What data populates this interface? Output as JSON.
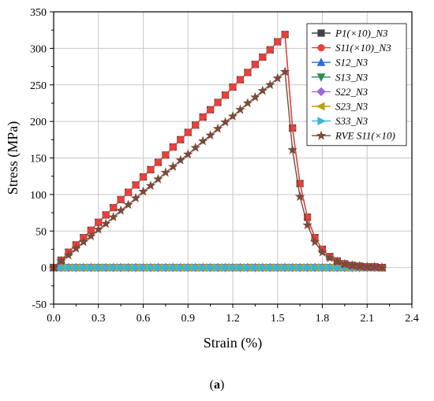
{
  "caption": {
    "open": "(",
    "label": "a",
    "close": ")"
  },
  "chart_data": {
    "type": "line",
    "xlabel": "Strain (%)",
    "ylabel": "Stress (MPa)",
    "xlim": [
      0.0,
      2.4
    ],
    "ylim": [
      -50,
      350
    ],
    "xticks": [
      "0.0",
      "0.3",
      "0.6",
      "0.9",
      "1.2",
      "1.5",
      "1.8",
      "2.1",
      "2.4"
    ],
    "yticks": [
      "-50",
      "0",
      "50",
      "100",
      "150",
      "200",
      "250",
      "300",
      "350"
    ],
    "grid": true,
    "legend_position": "top-right",
    "series": [
      {
        "name": "P1(×10)_N3",
        "color": "#444444",
        "marker": "square",
        "x": [
          0.0,
          0.05,
          0.1,
          0.15,
          0.2,
          0.25,
          0.3,
          0.35,
          0.4,
          0.45,
          0.5,
          0.55,
          0.6,
          0.65,
          0.7,
          0.75,
          0.8,
          0.85,
          0.9,
          0.95,
          1.0,
          1.05,
          1.1,
          1.15,
          1.2,
          1.25,
          1.3,
          1.35,
          1.4,
          1.45,
          1.5,
          1.55,
          1.6,
          1.65,
          1.7,
          1.75,
          1.8,
          1.85,
          1.9,
          1.95,
          2.0,
          2.05,
          2.1,
          2.15,
          2.2
        ],
        "y": [
          0,
          10,
          21,
          31,
          41,
          51,
          62,
          72,
          82,
          93,
          103,
          113,
          124,
          134,
          144,
          154,
          165,
          175,
          185,
          195,
          206,
          216,
          226,
          236,
          247,
          257,
          267,
          278,
          288,
          298,
          309,
          319,
          191,
          115,
          69,
          41,
          25,
          15,
          9,
          5,
          3,
          2,
          1,
          1,
          0
        ]
      },
      {
        "name": "S11(×10)_N3",
        "color": "#e8403a",
        "marker": "circle",
        "x": [
          0.0,
          0.05,
          0.1,
          0.15,
          0.2,
          0.25,
          0.3,
          0.35,
          0.4,
          0.45,
          0.5,
          0.55,
          0.6,
          0.65,
          0.7,
          0.75,
          0.8,
          0.85,
          0.9,
          0.95,
          1.0,
          1.05,
          1.1,
          1.15,
          1.2,
          1.25,
          1.3,
          1.35,
          1.4,
          1.45,
          1.5,
          1.55,
          1.6,
          1.65,
          1.7,
          1.75,
          1.8,
          1.85,
          1.9,
          1.95,
          2.0,
          2.05,
          2.1,
          2.15,
          2.2
        ],
        "y": [
          0,
          10,
          21,
          31,
          41,
          51,
          62,
          72,
          82,
          93,
          103,
          113,
          124,
          134,
          144,
          154,
          165,
          175,
          185,
          195,
          206,
          216,
          226,
          236,
          247,
          257,
          267,
          278,
          288,
          298,
          309,
          319,
          191,
          115,
          69,
          41,
          25,
          15,
          9,
          5,
          3,
          2,
          1,
          1,
          0
        ]
      },
      {
        "name": "S12_N3",
        "color": "#2a6fd6",
        "marker": "triangle-up",
        "x": [
          0.0,
          0.05,
          0.1,
          0.15,
          0.2,
          0.25,
          0.3,
          0.35,
          0.4,
          0.45,
          0.5,
          0.55,
          0.6,
          0.65,
          0.7,
          0.75,
          0.8,
          0.85,
          0.9,
          0.95,
          1.0,
          1.05,
          1.1,
          1.15,
          1.2,
          1.25,
          1.3,
          1.35,
          1.4,
          1.45,
          1.5,
          1.55,
          1.6,
          1.65,
          1.7,
          1.75,
          1.8,
          1.85,
          1.9,
          1.95,
          2.0,
          2.05,
          2.1,
          2.15,
          2.2
        ],
        "y": [
          0,
          0,
          0,
          0,
          0,
          0,
          0,
          0,
          0,
          0,
          0,
          0,
          0,
          0,
          0,
          0,
          0,
          0,
          0,
          0,
          0,
          0,
          0,
          0,
          0,
          0,
          0,
          0,
          0,
          0,
          0,
          0,
          0,
          0,
          0,
          0,
          0,
          0,
          0,
          0,
          0,
          0,
          0,
          0,
          0
        ]
      },
      {
        "name": "S13_N3",
        "color": "#2e8b57",
        "marker": "triangle-down",
        "x": [
          0.0,
          0.05,
          0.1,
          0.15,
          0.2,
          0.25,
          0.3,
          0.35,
          0.4,
          0.45,
          0.5,
          0.55,
          0.6,
          0.65,
          0.7,
          0.75,
          0.8,
          0.85,
          0.9,
          0.95,
          1.0,
          1.05,
          1.1,
          1.15,
          1.2,
          1.25,
          1.3,
          1.35,
          1.4,
          1.45,
          1.5,
          1.55,
          1.6,
          1.65,
          1.7,
          1.75,
          1.8,
          1.85,
          1.9,
          1.95,
          2.0,
          2.05,
          2.1,
          2.15,
          2.2
        ],
        "y": [
          0,
          0,
          0,
          0,
          0,
          0,
          0,
          0,
          0,
          0,
          0,
          0,
          0,
          0,
          0,
          0,
          0,
          0,
          0,
          0,
          0,
          0,
          0,
          0,
          0,
          0,
          0,
          0,
          0,
          0,
          0,
          0,
          0,
          0,
          0,
          0,
          0,
          0,
          0,
          0,
          0,
          0,
          0,
          0,
          0
        ]
      },
      {
        "name": "S22_N3",
        "color": "#a066e0",
        "marker": "diamond",
        "x": [
          0.0,
          0.05,
          0.1,
          0.15,
          0.2,
          0.25,
          0.3,
          0.35,
          0.4,
          0.45,
          0.5,
          0.55,
          0.6,
          0.65,
          0.7,
          0.75,
          0.8,
          0.85,
          0.9,
          0.95,
          1.0,
          1.05,
          1.1,
          1.15,
          1.2,
          1.25,
          1.3,
          1.35,
          1.4,
          1.45,
          1.5,
          1.55,
          1.6,
          1.65,
          1.7,
          1.75,
          1.8,
          1.85,
          1.9,
          1.95,
          2.0,
          2.05,
          2.1,
          2.15,
          2.2
        ],
        "y": [
          0,
          0,
          0,
          0,
          0,
          0,
          0,
          0,
          0,
          0,
          0,
          0,
          0,
          0,
          0,
          0,
          0,
          0,
          0,
          0,
          0,
          0,
          0,
          0,
          0,
          0,
          0,
          0,
          0,
          0,
          0,
          0,
          0,
          0,
          0,
          0,
          0,
          0,
          0,
          0,
          0,
          0,
          0,
          0,
          0
        ]
      },
      {
        "name": "S23_N3",
        "color": "#b5a300",
        "marker": "triangle-left",
        "x": [
          0.0,
          0.05,
          0.1,
          0.15,
          0.2,
          0.25,
          0.3,
          0.35,
          0.4,
          0.45,
          0.5,
          0.55,
          0.6,
          0.65,
          0.7,
          0.75,
          0.8,
          0.85,
          0.9,
          0.95,
          1.0,
          1.05,
          1.1,
          1.15,
          1.2,
          1.25,
          1.3,
          1.35,
          1.4,
          1.45,
          1.5,
          1.55,
          1.6,
          1.65,
          1.7,
          1.75,
          1.8,
          1.85,
          1.9,
          1.95,
          2.0,
          2.05,
          2.1,
          2.15,
          2.2
        ],
        "y": [
          0,
          0,
          0,
          0,
          0,
          0,
          0,
          0,
          0,
          0,
          0,
          0,
          0,
          0,
          0,
          0,
          0,
          0,
          0,
          0,
          0,
          0,
          0,
          0,
          0,
          0,
          0,
          0,
          0,
          0,
          0,
          0,
          0,
          0,
          0,
          0,
          0,
          0,
          0,
          0,
          0,
          0,
          0,
          0,
          0
        ]
      },
      {
        "name": "S33_N3",
        "color": "#3ab4d8",
        "marker": "triangle-right",
        "x": [
          0.0,
          0.05,
          0.1,
          0.15,
          0.2,
          0.25,
          0.3,
          0.35,
          0.4,
          0.45,
          0.5,
          0.55,
          0.6,
          0.65,
          0.7,
          0.75,
          0.8,
          0.85,
          0.9,
          0.95,
          1.0,
          1.05,
          1.1,
          1.15,
          1.2,
          1.25,
          1.3,
          1.35,
          1.4,
          1.45,
          1.5,
          1.55,
          1.6,
          1.65,
          1.7,
          1.75,
          1.8,
          1.85,
          1.9,
          1.95,
          2.0,
          2.05,
          2.1,
          2.15,
          2.2
        ],
        "y": [
          0,
          0,
          0,
          0,
          0,
          0,
          0,
          0,
          0,
          0,
          0,
          0,
          0,
          0,
          0,
          0,
          0,
          0,
          0,
          0,
          0,
          0,
          0,
          0,
          0,
          0,
          0,
          0,
          0,
          0,
          0,
          0,
          0,
          0,
          0,
          0,
          0,
          0,
          0,
          0,
          0,
          0,
          0,
          0,
          0
        ]
      },
      {
        "name": "RVE S11(×10)",
        "color": "#7a4a3a",
        "marker": "star",
        "x": [
          0.0,
          0.05,
          0.1,
          0.15,
          0.2,
          0.25,
          0.3,
          0.35,
          0.4,
          0.45,
          0.5,
          0.55,
          0.6,
          0.65,
          0.7,
          0.75,
          0.8,
          0.85,
          0.9,
          0.95,
          1.0,
          1.05,
          1.1,
          1.15,
          1.2,
          1.25,
          1.3,
          1.35,
          1.4,
          1.45,
          1.5,
          1.55,
          1.6,
          1.65,
          1.7,
          1.75,
          1.8,
          1.85,
          1.9,
          1.95,
          2.0,
          2.05,
          2.1,
          2.15,
          2.2
        ],
        "y": [
          0,
          9,
          17,
          26,
          35,
          43,
          52,
          60,
          69,
          78,
          86,
          95,
          104,
          112,
          121,
          130,
          138,
          147,
          155,
          164,
          173,
          181,
          190,
          199,
          207,
          216,
          225,
          233,
          242,
          250,
          259,
          268,
          161,
          97,
          58,
          35,
          21,
          13,
          8,
          5,
          3,
          2,
          1,
          1,
          0
        ]
      }
    ]
  }
}
